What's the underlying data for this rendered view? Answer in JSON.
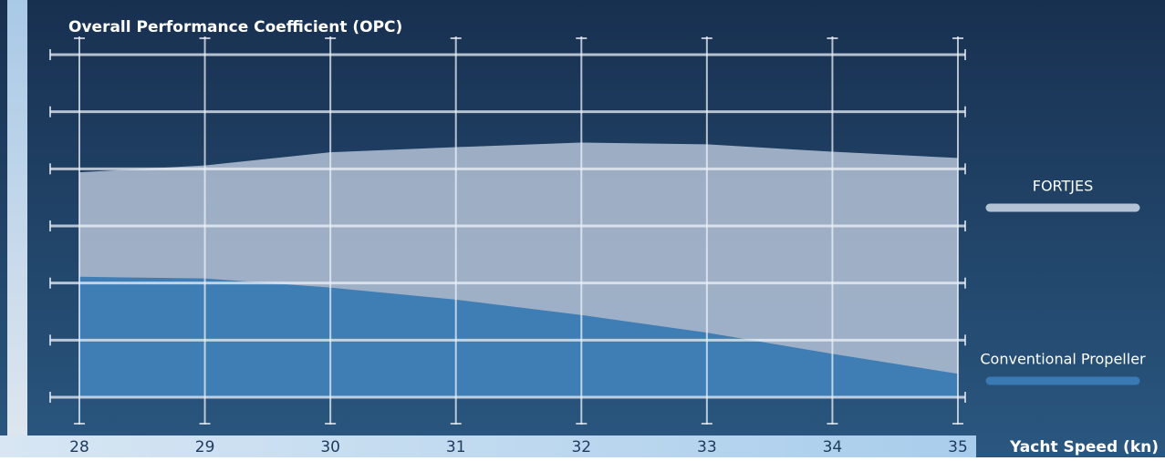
{
  "chart_data": {
    "type": "area",
    "title": "Overall Performance Coefficient (OPC)",
    "x_label": "Yacht Speed (kn)",
    "x": [
      28,
      29,
      30,
      31,
      32,
      33,
      34,
      35
    ],
    "series": [
      {
        "name": "FORTJES",
        "color": "#b4c2d6",
        "values": [
          3.94,
          4.06,
          4.29,
          4.38,
          4.46,
          4.43,
          4.3,
          4.19
        ]
      },
      {
        "name": "Conventional Propeller",
        "color": "#3a7ab4",
        "values": [
          2.11,
          2.08,
          1.92,
          1.71,
          1.44,
          1.13,
          0.76,
          0.41
        ]
      }
    ],
    "xlim": [
      28,
      35
    ],
    "xticks": [
      28,
      29,
      30,
      31,
      32,
      33,
      34,
      35
    ],
    "ylim": [
      0,
      6
    ],
    "yticks": [
      0,
      1,
      2,
      3,
      4,
      5,
      6
    ],
    "grid": true
  }
}
